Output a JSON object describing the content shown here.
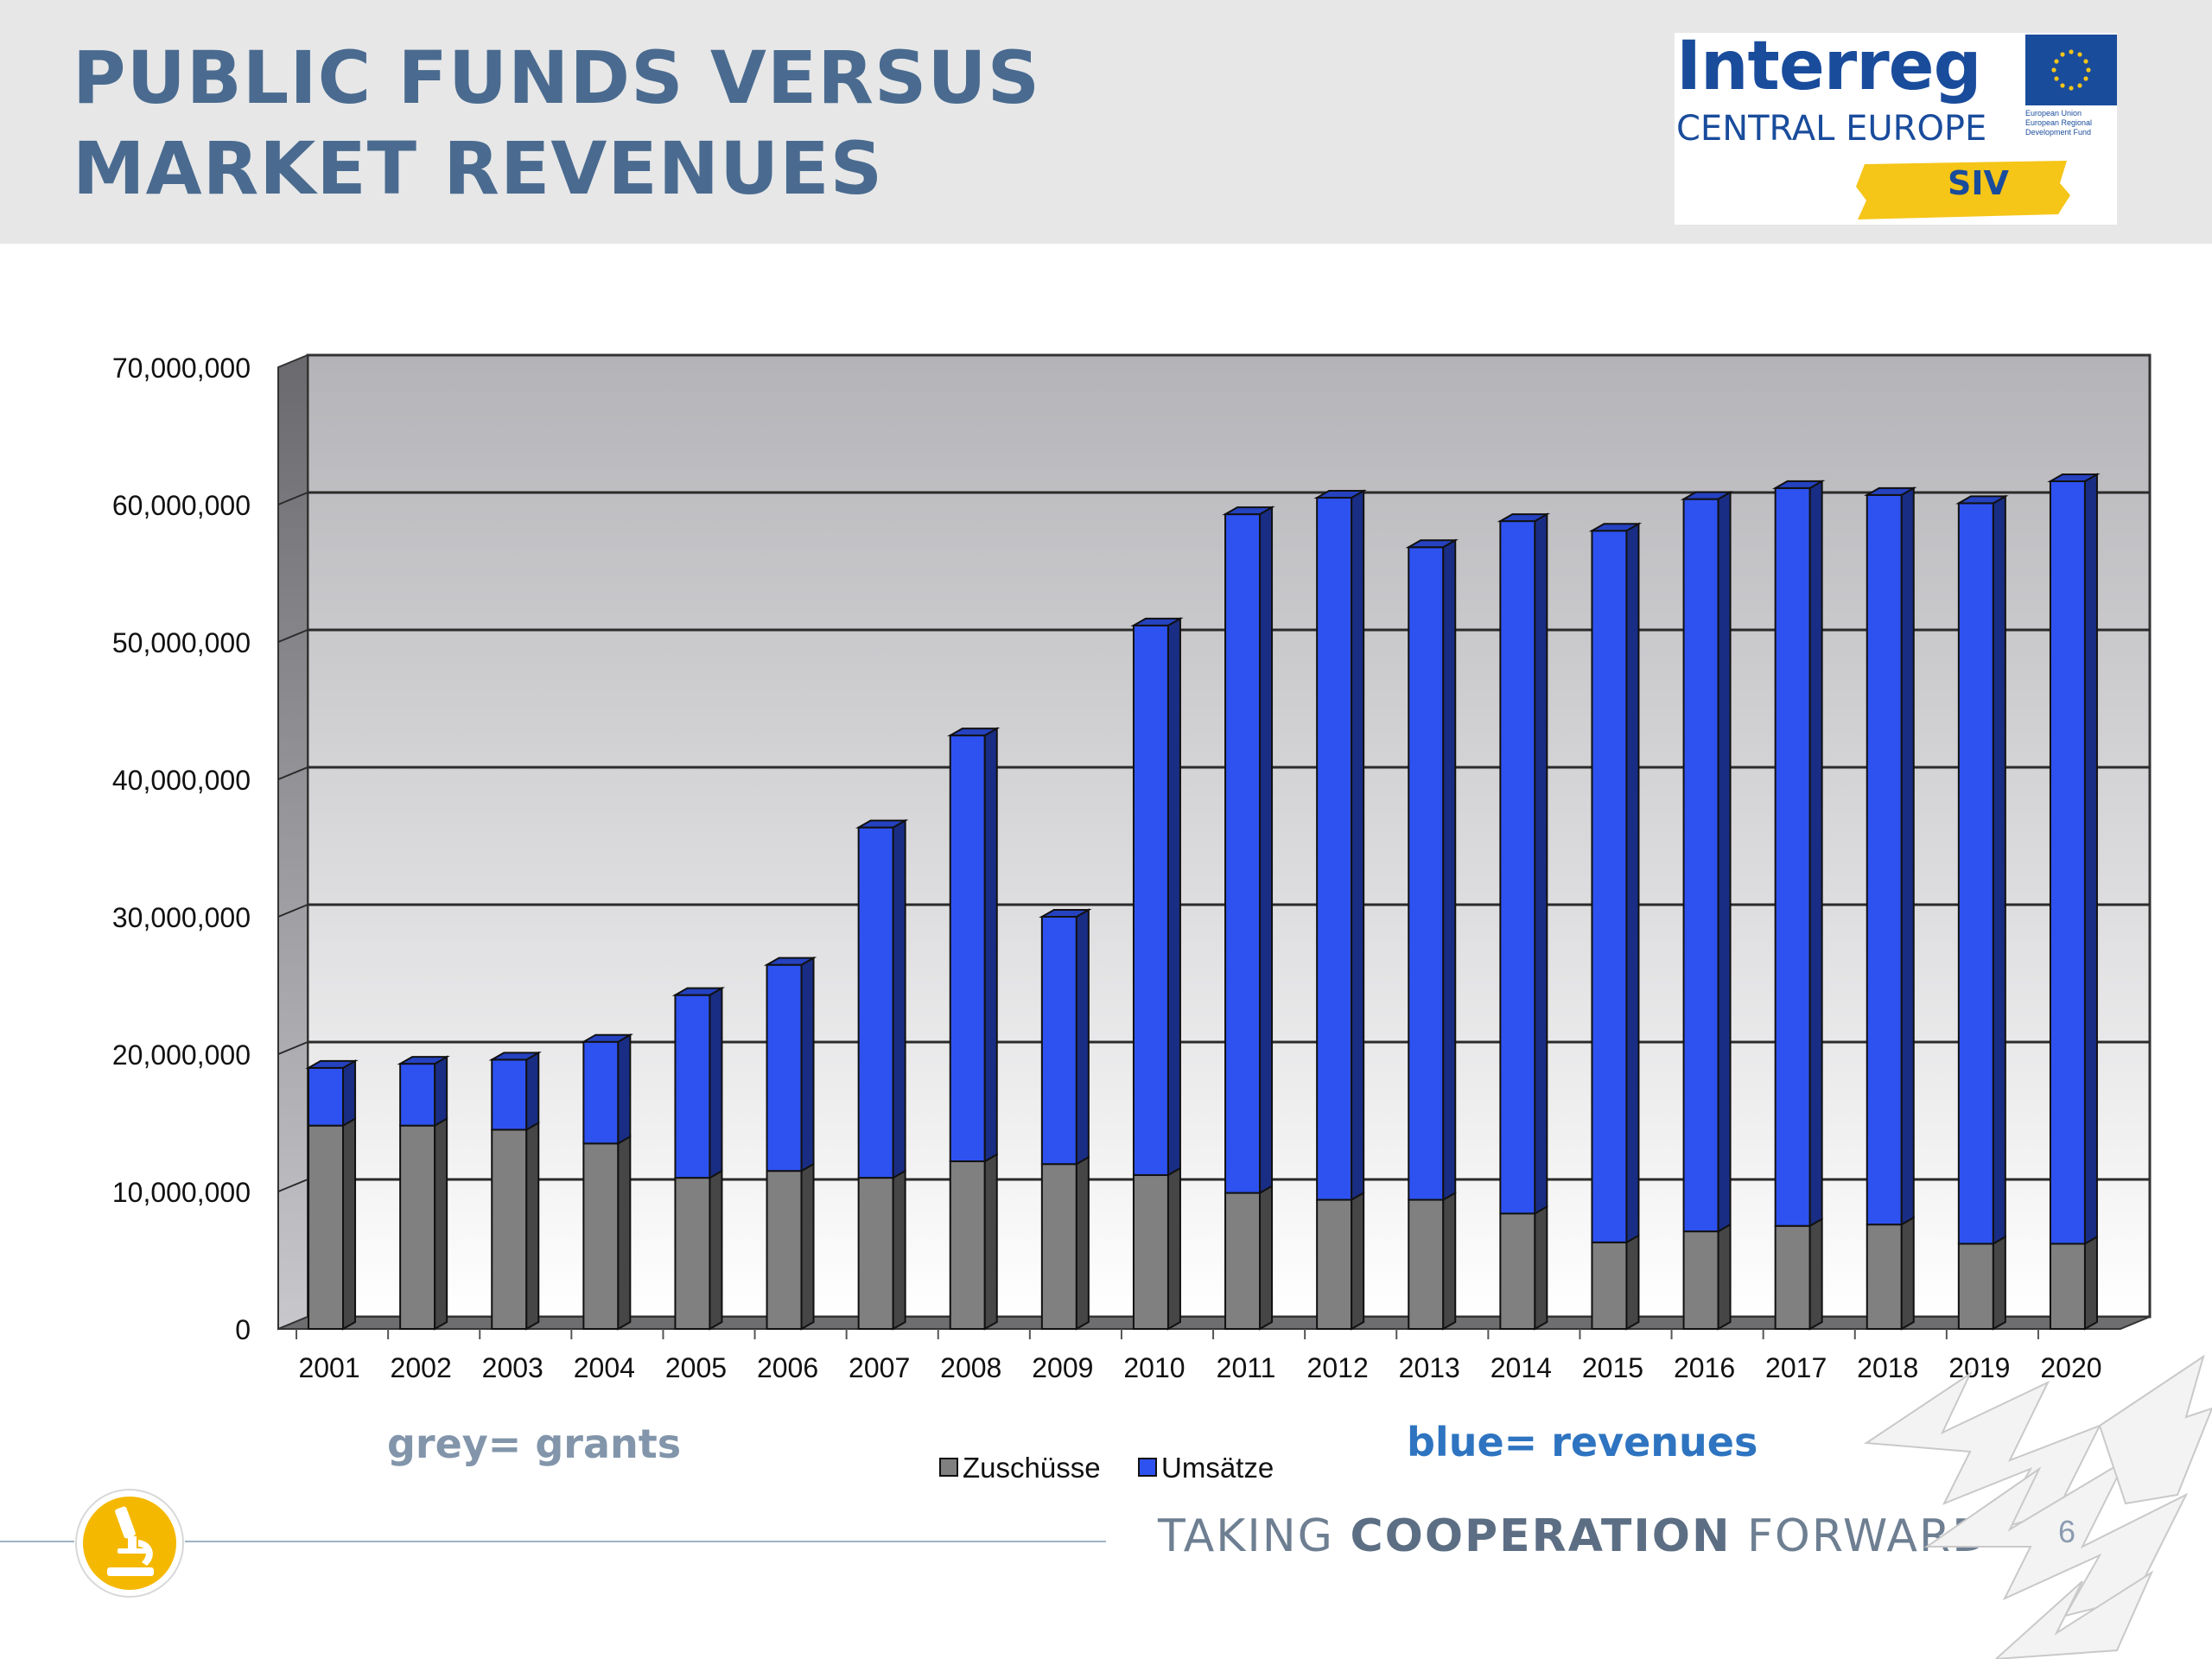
{
  "slide": {
    "title": "PUBLIC FUNDS VERSUS\nMARKET REVENUES",
    "page_number": "6",
    "tagline": {
      "part1": "TAKING ",
      "bold": "COOPERATION",
      "part2": " FORWARD"
    },
    "annotations": {
      "grey": "grey= grants",
      "blue": "blue= revenues"
    },
    "footer_icon": "microscope-icon"
  },
  "logo": {
    "word": "Interreg",
    "region": "CENTRAL EUROPE",
    "eu_text": "European Union European Regional Development Fund",
    "tag": "SIV"
  },
  "colors": {
    "title": "#4a6b8f",
    "grants": "#808080",
    "revenues": "#2e52f0",
    "annotation_grey": "#8295aa",
    "annotation_blue": "#2e74c0",
    "logo_blue": "#1a4c9c",
    "logo_yellow": "#f5c518"
  },
  "chart_data": {
    "type": "bar",
    "stacked": true,
    "title": "",
    "xlabel": "",
    "ylabel": "",
    "ylim": [
      0,
      70000000
    ],
    "yticks": [
      0,
      10000000,
      20000000,
      30000000,
      40000000,
      50000000,
      60000000,
      70000000
    ],
    "ytick_labels": [
      "0",
      "10,000,000",
      "20,000,000",
      "30,000,000",
      "40,000,000",
      "50,000,000",
      "60,000,000",
      "70,000,000"
    ],
    "grid": true,
    "legend": "bottom-center",
    "categories": [
      "2001",
      "2002",
      "2003",
      "2004",
      "2005",
      "2006",
      "2007",
      "2008",
      "2009",
      "2010",
      "2011",
      "2012",
      "2013",
      "2014",
      "2015",
      "2016",
      "2017",
      "2018",
      "2019",
      "2020"
    ],
    "series": [
      {
        "name": "Zuschüsse",
        "color": "#808080",
        "values": [
          14800000,
          14800000,
          14500000,
          13500000,
          11000000,
          11500000,
          11000000,
          12200000,
          12000000,
          11200000,
          9900000,
          9400000,
          9400000,
          8400000,
          6300000,
          7100000,
          7500000,
          7600000,
          6200000,
          6200000
        ]
      },
      {
        "name": "Umsätze",
        "color": "#2e52f0",
        "values": [
          4200000,
          4500000,
          5100000,
          7400000,
          13300000,
          15000000,
          25500000,
          31000000,
          18000000,
          40000000,
          49400000,
          51100000,
          47500000,
          50400000,
          51800000,
          53300000,
          53700000,
          53100000,
          53900000,
          55500000
        ]
      }
    ]
  }
}
